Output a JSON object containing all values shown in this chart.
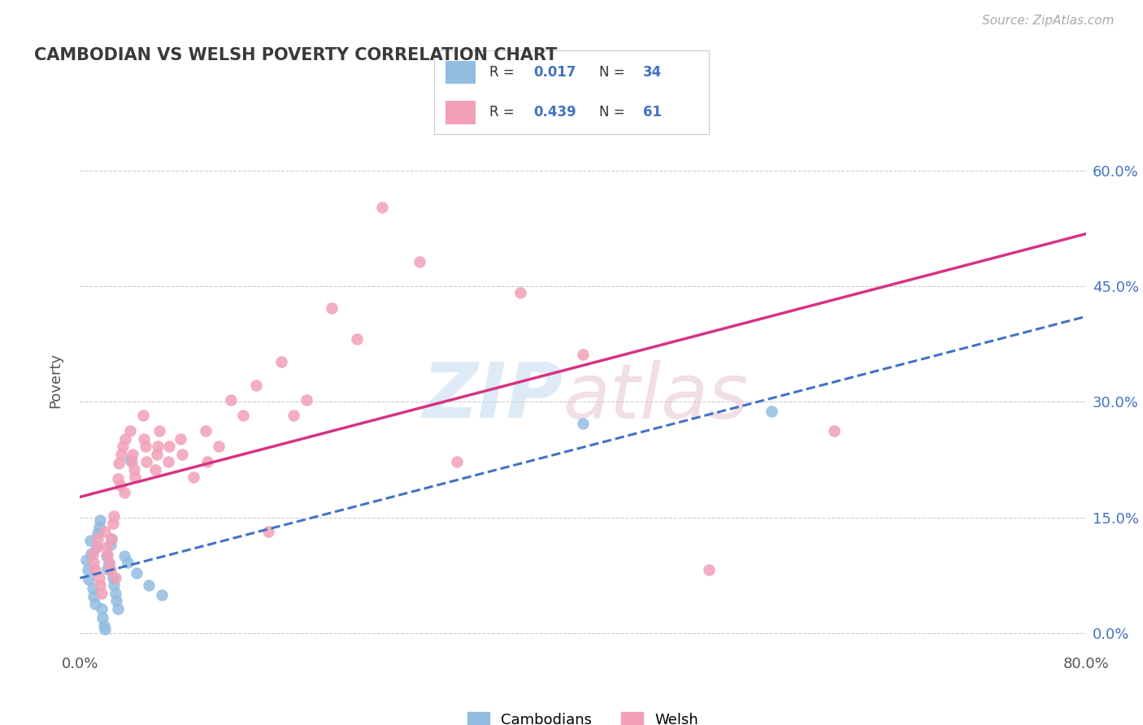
{
  "title": "CAMBODIAN VS WELSH POVERTY CORRELATION CHART",
  "source": "Source: ZipAtlas.com",
  "ylabel": "Poverty",
  "xlim": [
    0.0,
    0.8
  ],
  "ylim": [
    -0.025,
    0.68
  ],
  "yticks": [
    0.0,
    0.15,
    0.3,
    0.45,
    0.6
  ],
  "ytick_labels": [
    "0.0%",
    "15.0%",
    "30.0%",
    "45.0%",
    "60.0%"
  ],
  "xtick_labels": [
    "0.0%",
    "",
    "",
    "",
    "80.0%"
  ],
  "cambodian_color": "#92bce0",
  "welsh_color": "#f2a0b8",
  "cam_line_color": "#4472c4",
  "welsh_line_color": "#d63384",
  "R_cambodian": "0.017",
  "N_cambodian": "34",
  "R_welsh": "0.439",
  "N_welsh": "61",
  "cam_pts": [
    [
      0.005,
      0.095
    ],
    [
      0.006,
      0.082
    ],
    [
      0.007,
      0.07
    ],
    [
      0.008,
      0.12
    ],
    [
      0.009,
      0.103
    ],
    [
      0.01,
      0.058
    ],
    [
      0.011,
      0.048
    ],
    [
      0.012,
      0.038
    ],
    [
      0.013,
      0.112
    ],
    [
      0.014,
      0.13
    ],
    [
      0.015,
      0.138
    ],
    [
      0.016,
      0.147
    ],
    [
      0.017,
      0.032
    ],
    [
      0.018,
      0.02
    ],
    [
      0.019,
      0.01
    ],
    [
      0.02,
      0.005
    ],
    [
      0.021,
      0.1
    ],
    [
      0.022,
      0.083
    ],
    [
      0.023,
      0.09
    ],
    [
      0.024,
      0.115
    ],
    [
      0.025,
      0.122
    ],
    [
      0.026,
      0.072
    ],
    [
      0.027,
      0.062
    ],
    [
      0.028,
      0.052
    ],
    [
      0.029,
      0.042
    ],
    [
      0.03,
      0.032
    ],
    [
      0.035,
      0.1
    ],
    [
      0.038,
      0.092
    ],
    [
      0.04,
      0.225
    ],
    [
      0.045,
      0.078
    ],
    [
      0.055,
      0.062
    ],
    [
      0.065,
      0.05
    ],
    [
      0.4,
      0.272
    ],
    [
      0.55,
      0.288
    ]
  ],
  "welsh_pts": [
    [
      0.01,
      0.102
    ],
    [
      0.011,
      0.092
    ],
    [
      0.012,
      0.082
    ],
    [
      0.013,
      0.112
    ],
    [
      0.014,
      0.122
    ],
    [
      0.015,
      0.072
    ],
    [
      0.016,
      0.062
    ],
    [
      0.017,
      0.052
    ],
    [
      0.02,
      0.132
    ],
    [
      0.021,
      0.112
    ],
    [
      0.022,
      0.102
    ],
    [
      0.023,
      0.092
    ],
    [
      0.024,
      0.082
    ],
    [
      0.025,
      0.122
    ],
    [
      0.026,
      0.142
    ],
    [
      0.027,
      0.152
    ],
    [
      0.028,
      0.072
    ],
    [
      0.03,
      0.2
    ],
    [
      0.031,
      0.22
    ],
    [
      0.032,
      0.192
    ],
    [
      0.033,
      0.232
    ],
    [
      0.034,
      0.242
    ],
    [
      0.035,
      0.182
    ],
    [
      0.036,
      0.252
    ],
    [
      0.04,
      0.262
    ],
    [
      0.041,
      0.222
    ],
    [
      0.042,
      0.232
    ],
    [
      0.043,
      0.212
    ],
    [
      0.044,
      0.202
    ],
    [
      0.05,
      0.282
    ],
    [
      0.051,
      0.252
    ],
    [
      0.052,
      0.242
    ],
    [
      0.053,
      0.222
    ],
    [
      0.06,
      0.212
    ],
    [
      0.061,
      0.232
    ],
    [
      0.062,
      0.242
    ],
    [
      0.063,
      0.262
    ],
    [
      0.07,
      0.222
    ],
    [
      0.071,
      0.242
    ],
    [
      0.08,
      0.252
    ],
    [
      0.081,
      0.232
    ],
    [
      0.09,
      0.202
    ],
    [
      0.1,
      0.262
    ],
    [
      0.101,
      0.222
    ],
    [
      0.11,
      0.242
    ],
    [
      0.12,
      0.302
    ],
    [
      0.13,
      0.282
    ],
    [
      0.14,
      0.322
    ],
    [
      0.15,
      0.132
    ],
    [
      0.16,
      0.352
    ],
    [
      0.17,
      0.282
    ],
    [
      0.18,
      0.302
    ],
    [
      0.2,
      0.422
    ],
    [
      0.22,
      0.382
    ],
    [
      0.24,
      0.552
    ],
    [
      0.27,
      0.482
    ],
    [
      0.3,
      0.222
    ],
    [
      0.35,
      0.442
    ],
    [
      0.4,
      0.362
    ],
    [
      0.5,
      0.082
    ],
    [
      0.6,
      0.262
    ]
  ]
}
